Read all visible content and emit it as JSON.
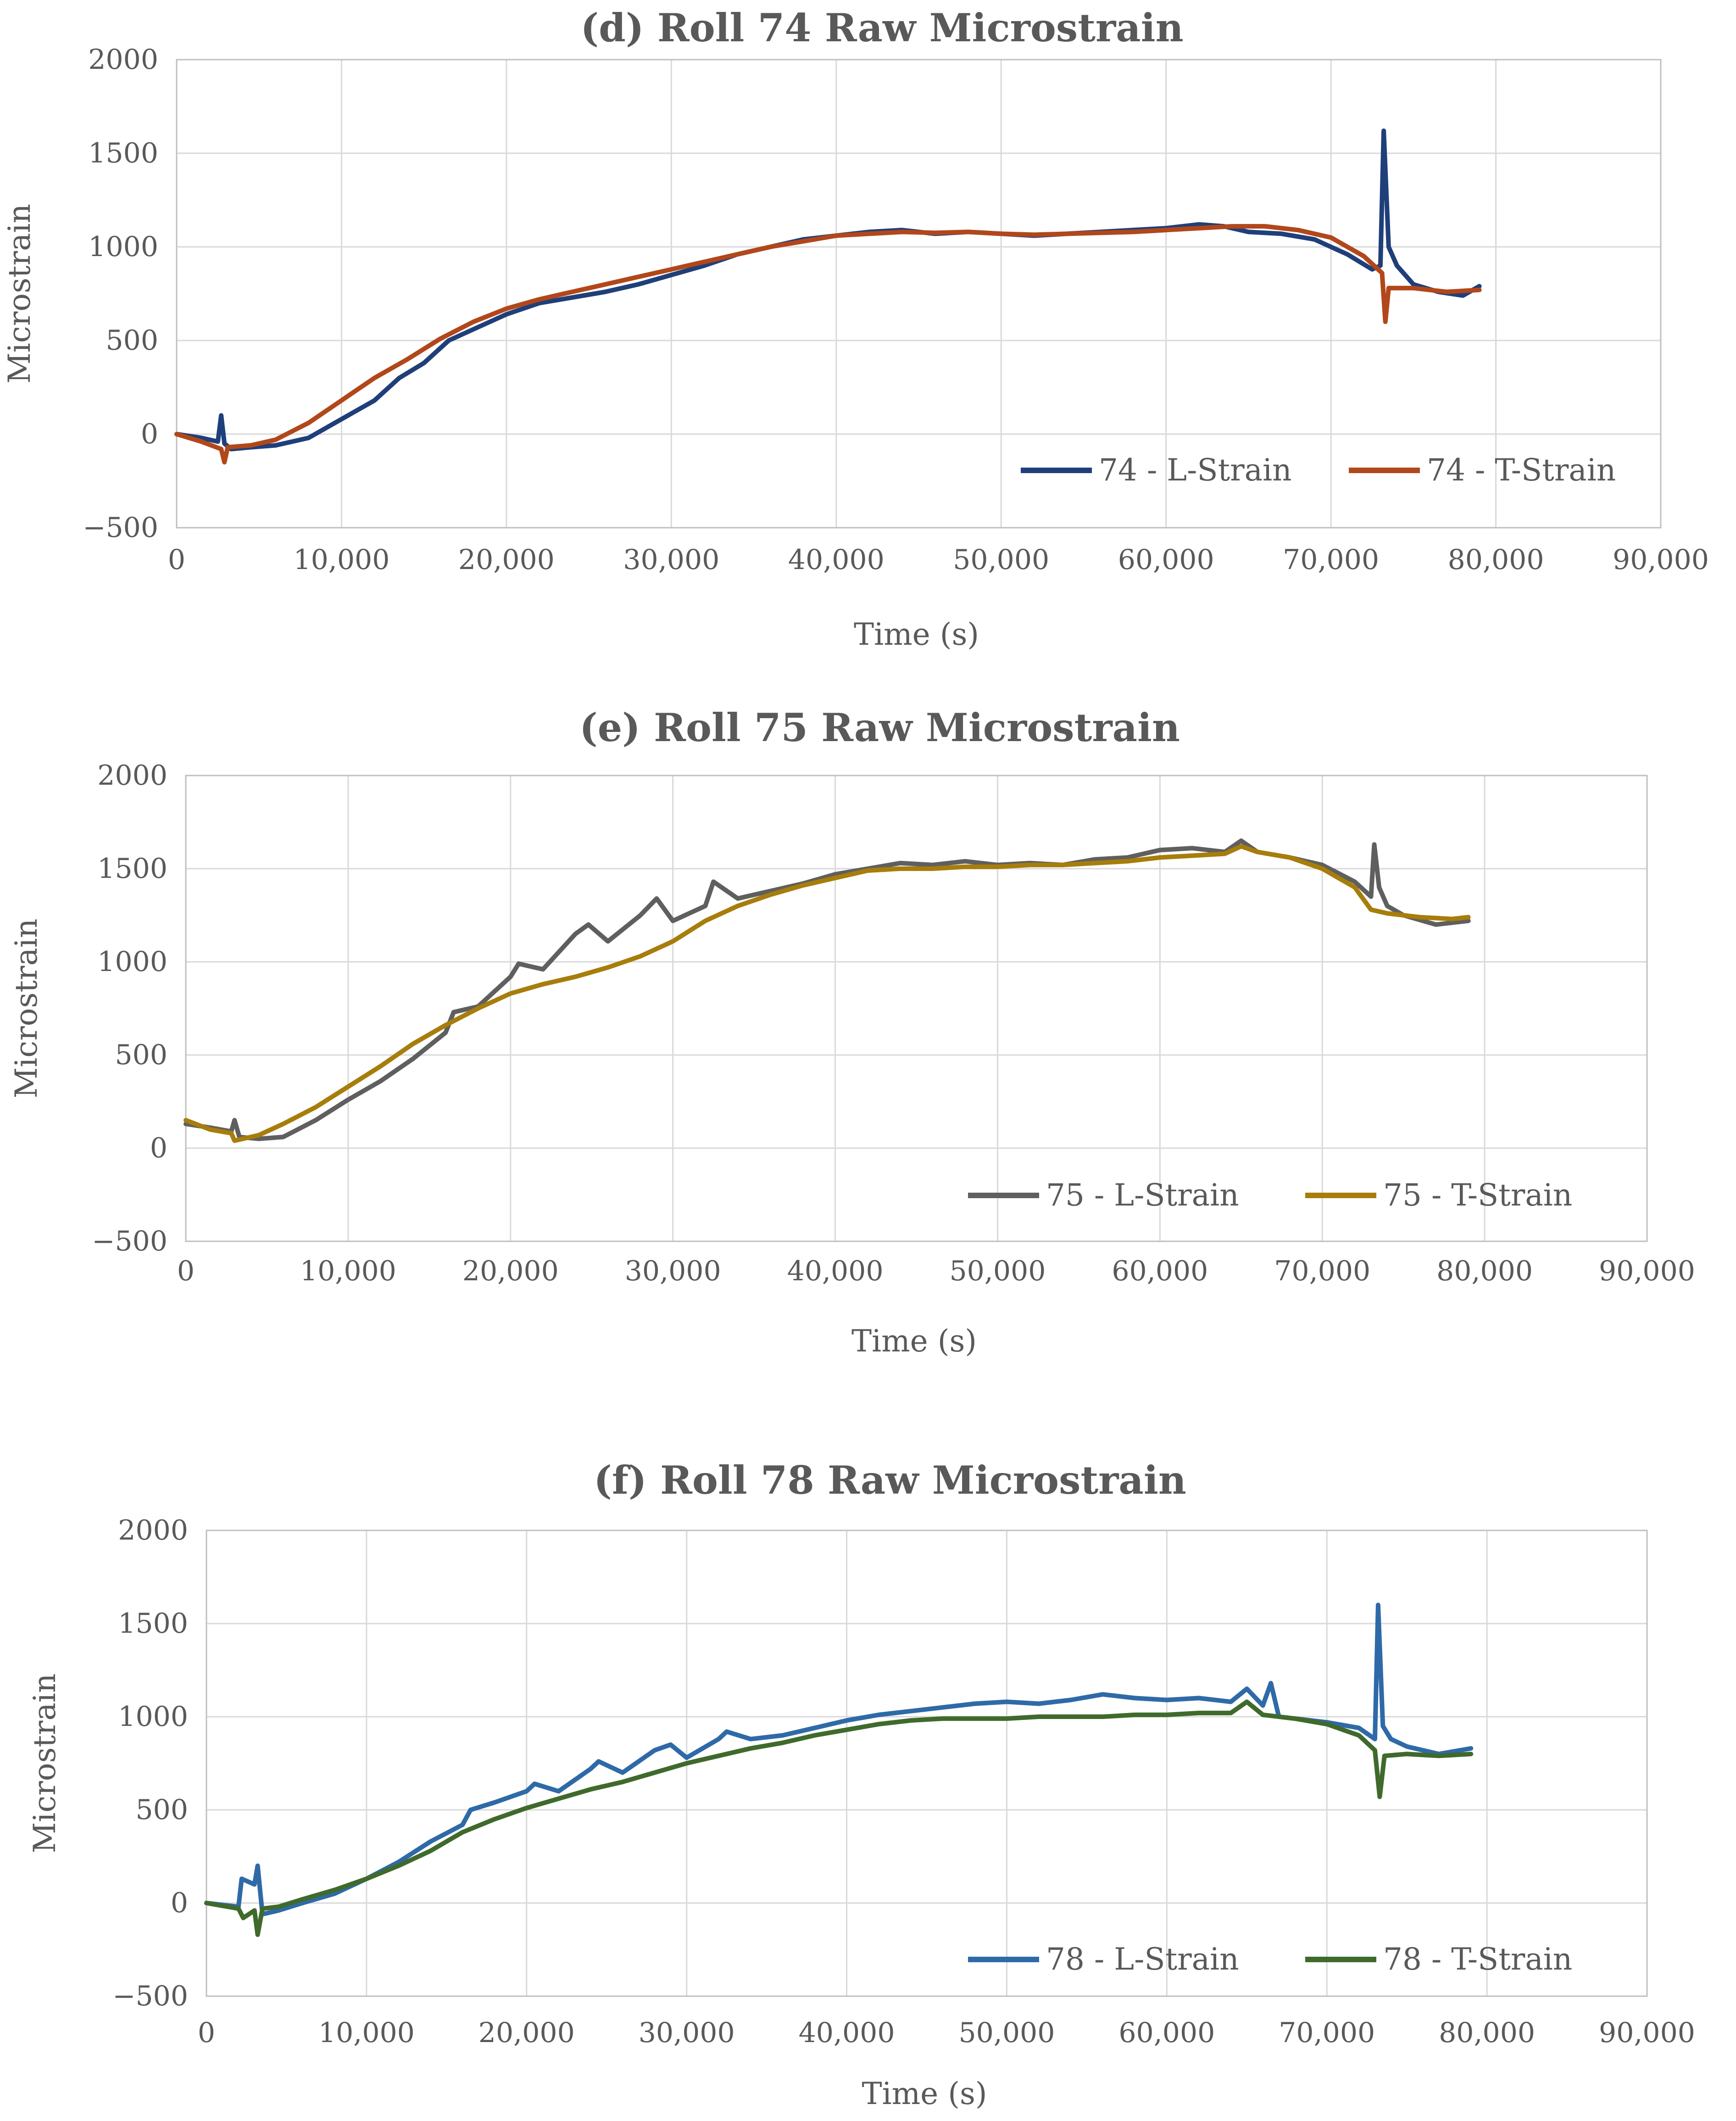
{
  "chart_data": [
    {
      "type": "line",
      "title": "(d) Roll 74 Raw Microstrain",
      "xlabel": "Time (s)",
      "ylabel": "Microstrain",
      "xlim": [
        0,
        90000
      ],
      "ylim": [
        -500,
        2000
      ],
      "xticks": [
        0,
        10000,
        20000,
        30000,
        40000,
        50000,
        60000,
        70000,
        80000,
        90000
      ],
      "xtick_labels": [
        "0",
        "10,000",
        "20,000",
        "30,000",
        "40,000",
        "50,000",
        "60,000",
        "70,000",
        "80,000",
        "90,000"
      ],
      "yticks": [
        -500,
        0,
        500,
        1000,
        1500,
        2000
      ],
      "ytick_labels": [
        "−500",
        "0",
        "500",
        "1000",
        "1500",
        "2000"
      ],
      "grid": true,
      "legend_position": "bottom-right",
      "series": [
        {
          "name": "74 - L-Strain",
          "color": "#1f3f7a",
          "x": [
            0,
            1500,
            2500,
            2700,
            2900,
            3300,
            4500,
            6000,
            8000,
            10000,
            12000,
            13500,
            15000,
            16500,
            18000,
            20000,
            22000,
            24000,
            26000,
            28000,
            30000,
            32000,
            34000,
            36000,
            38000,
            40000,
            42000,
            44000,
            46000,
            48000,
            50000,
            52000,
            54000,
            56000,
            58000,
            60000,
            62000,
            63500,
            65000,
            67000,
            69000,
            71000,
            72500,
            73000,
            73200,
            73500,
            74000,
            75000,
            76500,
            78000,
            79000
          ],
          "y": [
            0,
            -20,
            -40,
            100,
            -50,
            -80,
            -70,
            -60,
            -20,
            80,
            180,
            300,
            380,
            500,
            560,
            640,
            700,
            730,
            760,
            800,
            850,
            900,
            960,
            1000,
            1040,
            1060,
            1080,
            1090,
            1070,
            1080,
            1070,
            1060,
            1070,
            1080,
            1090,
            1100,
            1120,
            1110,
            1080,
            1070,
            1040,
            960,
            880,
            900,
            1620,
            1000,
            900,
            800,
            760,
            740,
            790
          ]
        },
        {
          "name": "74 - T-Strain",
          "color": "#b1471a",
          "x": [
            0,
            1500,
            2700,
            2900,
            3100,
            4500,
            6000,
            8000,
            10000,
            12000,
            14000,
            16000,
            18000,
            20000,
            22000,
            24000,
            26000,
            28000,
            30000,
            32000,
            34000,
            36000,
            38000,
            40000,
            42000,
            44000,
            46000,
            48000,
            50000,
            52000,
            54000,
            56000,
            58000,
            60000,
            62000,
            64000,
            66000,
            68000,
            70000,
            72000,
            73100,
            73300,
            73500,
            75000,
            77000,
            79000
          ],
          "y": [
            0,
            -40,
            -80,
            -150,
            -70,
            -60,
            -30,
            60,
            180,
            300,
            400,
            510,
            600,
            670,
            720,
            760,
            800,
            840,
            880,
            920,
            960,
            1000,
            1030,
            1060,
            1070,
            1080,
            1075,
            1080,
            1070,
            1065,
            1070,
            1075,
            1080,
            1090,
            1100,
            1110,
            1110,
            1090,
            1050,
            950,
            860,
            600,
            780,
            780,
            760,
            770
          ]
        }
      ]
    },
    {
      "type": "line",
      "title": "(e) Roll 75 Raw Microstrain",
      "xlabel": "Time (s)",
      "ylabel": "Microstrain",
      "xlim": [
        0,
        90000
      ],
      "ylim": [
        -500,
        2000
      ],
      "xticks": [
        0,
        10000,
        20000,
        30000,
        40000,
        50000,
        60000,
        70000,
        80000,
        90000
      ],
      "xtick_labels": [
        "0",
        "10,000",
        "20,000",
        "30,000",
        "40,000",
        "50,000",
        "60,000",
        "70,000",
        "80,000",
        "90,000"
      ],
      "yticks": [
        -500,
        0,
        500,
        1000,
        1500,
        2000
      ],
      "ytick_labels": [
        "−500",
        "0",
        "500",
        "1000",
        "1500",
        "2000"
      ],
      "grid": true,
      "legend_position": "bottom-right",
      "series": [
        {
          "name": "75 - L-Strain",
          "color": "#5f5f5f",
          "x": [
            0,
            1500,
            2800,
            3000,
            3300,
            4500,
            6000,
            8000,
            10000,
            12000,
            14000,
            16000,
            16500,
            18000,
            20000,
            20500,
            22000,
            24000,
            24800,
            26000,
            28000,
            29000,
            30000,
            32000,
            32500,
            34000,
            36000,
            38000,
            40000,
            42000,
            44000,
            46000,
            48000,
            50000,
            52000,
            54000,
            56000,
            58000,
            60000,
            62000,
            64000,
            65000,
            66000,
            68000,
            70000,
            72000,
            73000,
            73200,
            73500,
            74000,
            75000,
            77000,
            79000
          ],
          "y": [
            130,
            110,
            90,
            150,
            60,
            50,
            60,
            150,
            260,
            360,
            480,
            620,
            730,
            760,
            920,
            990,
            960,
            1150,
            1200,
            1110,
            1250,
            1340,
            1220,
            1300,
            1430,
            1340,
            1380,
            1420,
            1470,
            1500,
            1530,
            1520,
            1540,
            1520,
            1530,
            1520,
            1550,
            1560,
            1600,
            1610,
            1590,
            1650,
            1590,
            1560,
            1520,
            1430,
            1350,
            1630,
            1400,
            1300,
            1250,
            1200,
            1220
          ]
        },
        {
          "name": "75 - T-Strain",
          "color": "#a77d0b",
          "x": [
            0,
            1500,
            2800,
            3000,
            4500,
            6000,
            8000,
            10000,
            12000,
            14000,
            16000,
            18000,
            20000,
            22000,
            24000,
            26000,
            28000,
            30000,
            32000,
            34000,
            36000,
            38000,
            40000,
            42000,
            44000,
            46000,
            48000,
            50000,
            52000,
            54000,
            56000,
            58000,
            60000,
            62000,
            64000,
            65000,
            66000,
            68000,
            70000,
            72000,
            73000,
            74000,
            76000,
            78000,
            79000
          ],
          "y": [
            150,
            100,
            80,
            40,
            70,
            130,
            220,
            330,
            440,
            560,
            660,
            750,
            830,
            880,
            920,
            970,
            1030,
            1110,
            1220,
            1300,
            1360,
            1410,
            1450,
            1490,
            1500,
            1500,
            1510,
            1510,
            1520,
            1520,
            1530,
            1540,
            1560,
            1570,
            1580,
            1620,
            1590,
            1560,
            1500,
            1400,
            1280,
            1260,
            1240,
            1230,
            1240
          ]
        }
      ]
    },
    {
      "type": "line",
      "title": "(f) Roll 78 Raw Microstrain",
      "xlabel": "Time (s)",
      "ylabel": "Microstrain",
      "xlim": [
        0,
        90000
      ],
      "ylim": [
        -500,
        2000
      ],
      "xticks": [
        0,
        10000,
        20000,
        30000,
        40000,
        50000,
        60000,
        70000,
        80000,
        90000
      ],
      "xtick_labels": [
        "0",
        "10,000",
        "20,000",
        "30,000",
        "40,000",
        "50,000",
        "60,000",
        "70,000",
        "80,000",
        "90,000"
      ],
      "yticks": [
        -500,
        0,
        500,
        1000,
        1500,
        2000
      ],
      "ytick_labels": [
        "−500",
        "0",
        "500",
        "1000",
        "1500",
        "2000"
      ],
      "grid": true,
      "legend_position": "bottom-right",
      "series": [
        {
          "name": "78 - L-Strain",
          "color": "#2e6aa7",
          "x": [
            0,
            2000,
            2200,
            3000,
            3200,
            3500,
            4500,
            6000,
            8000,
            10000,
            12000,
            14000,
            16000,
            16500,
            18000,
            20000,
            20500,
            22000,
            24000,
            24500,
            26000,
            28000,
            29000,
            30000,
            32000,
            32500,
            34000,
            36000,
            38000,
            40000,
            42000,
            44000,
            46000,
            48000,
            50000,
            52000,
            54000,
            56000,
            58000,
            60000,
            62000,
            64000,
            65000,
            66000,
            66500,
            67000,
            68000,
            70000,
            72000,
            73000,
            73200,
            73500,
            74000,
            75000,
            77000,
            79000
          ],
          "y": [
            0,
            -20,
            130,
            100,
            200,
            -60,
            -40,
            0,
            50,
            130,
            220,
            330,
            420,
            500,
            540,
            600,
            640,
            600,
            720,
            760,
            700,
            820,
            850,
            780,
            880,
            920,
            880,
            900,
            940,
            980,
            1010,
            1030,
            1050,
            1070,
            1080,
            1070,
            1090,
            1120,
            1100,
            1090,
            1100,
            1080,
            1150,
            1060,
            1180,
            1000,
            990,
            970,
            940,
            880,
            1600,
            950,
            880,
            840,
            800,
            830
          ]
        },
        {
          "name": "78 - T-Strain",
          "color": "#3f6a2c",
          "x": [
            0,
            2000,
            2300,
            3000,
            3200,
            3500,
            4500,
            6000,
            8000,
            10000,
            12000,
            14000,
            16000,
            18000,
            20000,
            22000,
            24000,
            26000,
            28000,
            30000,
            32000,
            34000,
            36000,
            38000,
            40000,
            42000,
            44000,
            46000,
            48000,
            50000,
            52000,
            54000,
            56000,
            58000,
            60000,
            62000,
            64000,
            65000,
            66000,
            68000,
            70000,
            72000,
            73000,
            73300,
            73600,
            75000,
            77000,
            79000
          ],
          "y": [
            0,
            -30,
            -80,
            -40,
            -170,
            -30,
            -20,
            20,
            70,
            130,
            200,
            280,
            380,
            450,
            510,
            560,
            610,
            650,
            700,
            750,
            790,
            830,
            860,
            900,
            930,
            960,
            980,
            990,
            990,
            990,
            1000,
            1000,
            1000,
            1010,
            1010,
            1020,
            1020,
            1080,
            1010,
            990,
            960,
            900,
            820,
            570,
            790,
            800,
            790,
            800
          ]
        }
      ]
    }
  ]
}
